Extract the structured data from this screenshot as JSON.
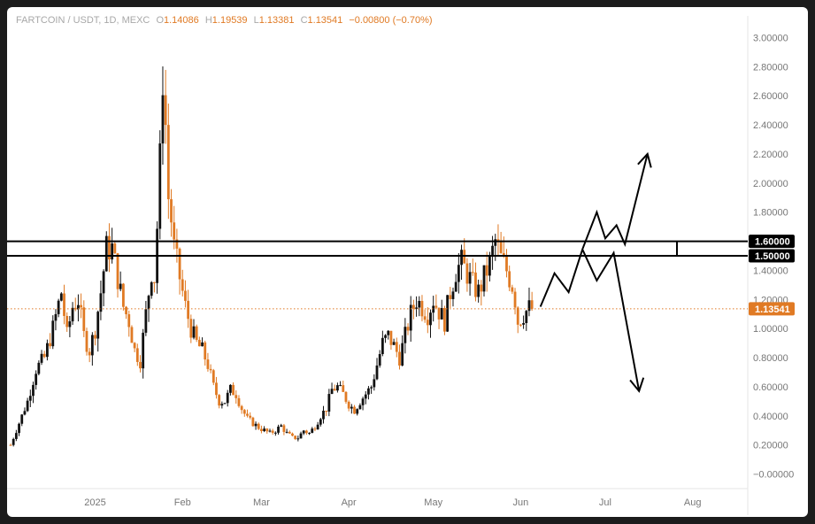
{
  "header": {
    "symbol": "FARTCOIN / USDT, 1D, MEXC",
    "open_label": "O",
    "open": "1.14086",
    "high_label": "H",
    "high": "1.19539",
    "low_label": "L",
    "low": "1.13381",
    "close_label": "C",
    "close": "1.13541",
    "change": "−0.00800 (−0.70%)"
  },
  "colors": {
    "up": "#111111",
    "down": "#e07a24",
    "price_line": "#e07a24",
    "level": "#000000"
  },
  "chart_data": {
    "type": "candlestick",
    "title": "FARTCOIN / USDT, 1D, MEXC",
    "y_ticks": [
      "3.00000",
      "2.80000",
      "2.60000",
      "2.40000",
      "2.20000",
      "2.00000",
      "1.80000",
      "1.60000",
      "1.40000",
      "1.20000",
      "1.00000",
      "0.80000",
      "0.60000",
      "0.40000",
      "0.20000",
      "−0.00000"
    ],
    "ylim": [
      -0.1,
      3.1
    ],
    "x_ticks": [
      "2025",
      "Feb",
      "Mar",
      "Apr",
      "May",
      "Jun",
      "Jul",
      "Aug"
    ],
    "xlim_days": [
      -30,
      230
    ],
    "x_tick_days": [
      0,
      31,
      59,
      90,
      120,
      151,
      181,
      212
    ],
    "levels": [
      {
        "value": 1.6,
        "label": "1.60000"
      },
      {
        "value": 1.5,
        "label": "1.50000"
      }
    ],
    "last_price": {
      "value": 1.13541,
      "label": "1.13541"
    },
    "price_path": [
      [
        -30,
        0.2
      ],
      [
        -27,
        0.35
      ],
      [
        -24,
        0.5
      ],
      [
        -21,
        0.72
      ],
      [
        -18,
        0.8
      ],
      [
        -15,
        1.0
      ],
      [
        -12,
        1.25
      ],
      [
        -10,
        0.95
      ],
      [
        -8,
        1.15
      ],
      [
        -6,
        1.2
      ],
      [
        -4,
        0.95
      ],
      [
        -2,
        0.85
      ],
      [
        0,
        1.0
      ],
      [
        2,
        1.25
      ],
      [
        4,
        1.55
      ],
      [
        6,
        1.55
      ],
      [
        8,
        1.35
      ],
      [
        10,
        1.15
      ],
      [
        12,
        1.05
      ],
      [
        14,
        0.85
      ],
      [
        16,
        0.78
      ],
      [
        18,
        1.1
      ],
      [
        20,
        1.4
      ],
      [
        21,
        1.35
      ],
      [
        22,
        1.7
      ],
      [
        23,
        2.15
      ],
      [
        24,
        2.75
      ],
      [
        25,
        2.4
      ],
      [
        26,
        1.9
      ],
      [
        27,
        1.75
      ],
      [
        28,
        1.55
      ],
      [
        30,
        1.35
      ],
      [
        32,
        1.15
      ],
      [
        34,
        1.0
      ],
      [
        36,
        0.9
      ],
      [
        38,
        0.85
      ],
      [
        40,
        0.75
      ],
      [
        42,
        0.6
      ],
      [
        44,
        0.5
      ],
      [
        46,
        0.5
      ],
      [
        48,
        0.58
      ],
      [
        50,
        0.55
      ],
      [
        52,
        0.45
      ],
      [
        54,
        0.38
      ],
      [
        56,
        0.35
      ],
      [
        58,
        0.32
      ],
      [
        60,
        0.3
      ],
      [
        62,
        0.28
      ],
      [
        64,
        0.3
      ],
      [
        66,
        0.33
      ],
      [
        68,
        0.28
      ],
      [
        70,
        0.25
      ],
      [
        72,
        0.25
      ],
      [
        74,
        0.3
      ],
      [
        76,
        0.28
      ],
      [
        78,
        0.33
      ],
      [
        80,
        0.4
      ],
      [
        82,
        0.45
      ],
      [
        84,
        0.58
      ],
      [
        86,
        0.6
      ],
      [
        88,
        0.55
      ],
      [
        90,
        0.48
      ],
      [
        92,
        0.44
      ],
      [
        94,
        0.5
      ],
      [
        96,
        0.55
      ],
      [
        98,
        0.6
      ],
      [
        100,
        0.75
      ],
      [
        102,
        0.9
      ],
      [
        104,
        0.95
      ],
      [
        106,
        0.88
      ],
      [
        108,
        0.8
      ],
      [
        110,
        0.95
      ],
      [
        112,
        1.1
      ],
      [
        114,
        1.2
      ],
      [
        116,
        1.15
      ],
      [
        118,
        1.1
      ],
      [
        120,
        1.2
      ],
      [
        122,
        1.12
      ],
      [
        124,
        1.05
      ],
      [
        126,
        1.25
      ],
      [
        128,
        1.4
      ],
      [
        130,
        1.45
      ],
      [
        132,
        1.38
      ],
      [
        134,
        1.3
      ],
      [
        136,
        1.25
      ],
      [
        138,
        1.35
      ],
      [
        140,
        1.45
      ],
      [
        142,
        1.6
      ],
      [
        144,
        1.48
      ],
      [
        146,
        1.4
      ],
      [
        148,
        1.3
      ],
      [
        149,
        1.2
      ],
      [
        150,
        1.05
      ],
      [
        152,
        1.1
      ],
      [
        154,
        1.14
      ]
    ],
    "scenario_up_path": [
      [
        158,
        1.15
      ],
      [
        163,
        1.38
      ],
      [
        168,
        1.25
      ],
      [
        173,
        1.55
      ],
      [
        178,
        1.8
      ],
      [
        181,
        1.62
      ],
      [
        185,
        1.71
      ],
      [
        188,
        1.58
      ],
      [
        196,
        2.2
      ]
    ],
    "scenario_down_path": [
      [
        173,
        1.54
      ],
      [
        178,
        1.33
      ],
      [
        184,
        1.52
      ],
      [
        193,
        0.57
      ]
    ]
  },
  "labels": {
    "level_1": "1.60000",
    "level_2": "1.50000",
    "last_price": "1.13541"
  }
}
